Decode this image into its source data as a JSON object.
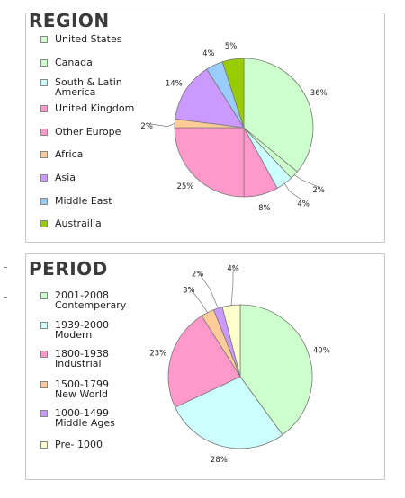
{
  "chart_data": [
    {
      "type": "pie",
      "title": "REGION",
      "categories": [
        "United States",
        "Canada",
        "South & Latin\nAmerica",
        "United Kingdom",
        "Other Europe",
        "Africa",
        "Asia",
        "Middle East",
        "Austrailia"
      ],
      "values": [
        36,
        2,
        4,
        8,
        25,
        2,
        14,
        4,
        5
      ],
      "labels": [
        "36%",
        "2%",
        "4%",
        "8%",
        "25%",
        "2%",
        "14%",
        "4%",
        "5%"
      ],
      "colors": [
        "#ccffcc",
        "#ccffcc",
        "#ccffff",
        "#ff99cc",
        "#ff99cc",
        "#ffcc99",
        "#cc99ff",
        "#99ccff",
        "#99cc00"
      ],
      "legend": "left"
    },
    {
      "type": "pie",
      "title": "PERIOD",
      "categories": [
        "2001-2008\nContemperary",
        "1939-2000\nModern",
        "1800-1938\nIndustrial",
        "1500-1799\nNew World",
        "1000-1499\nMiddle Ages",
        "Pre- 1000"
      ],
      "values": [
        40,
        28,
        23,
        3,
        2,
        4
      ],
      "labels": [
        "40%",
        "28%",
        "23%",
        "3%",
        "2%",
        "4%"
      ],
      "colors": [
        "#ccffcc",
        "#ccffff",
        "#ff99cc",
        "#ffcc99",
        "#cc99ff",
        "#ffffcc"
      ],
      "legend": "left"
    }
  ]
}
